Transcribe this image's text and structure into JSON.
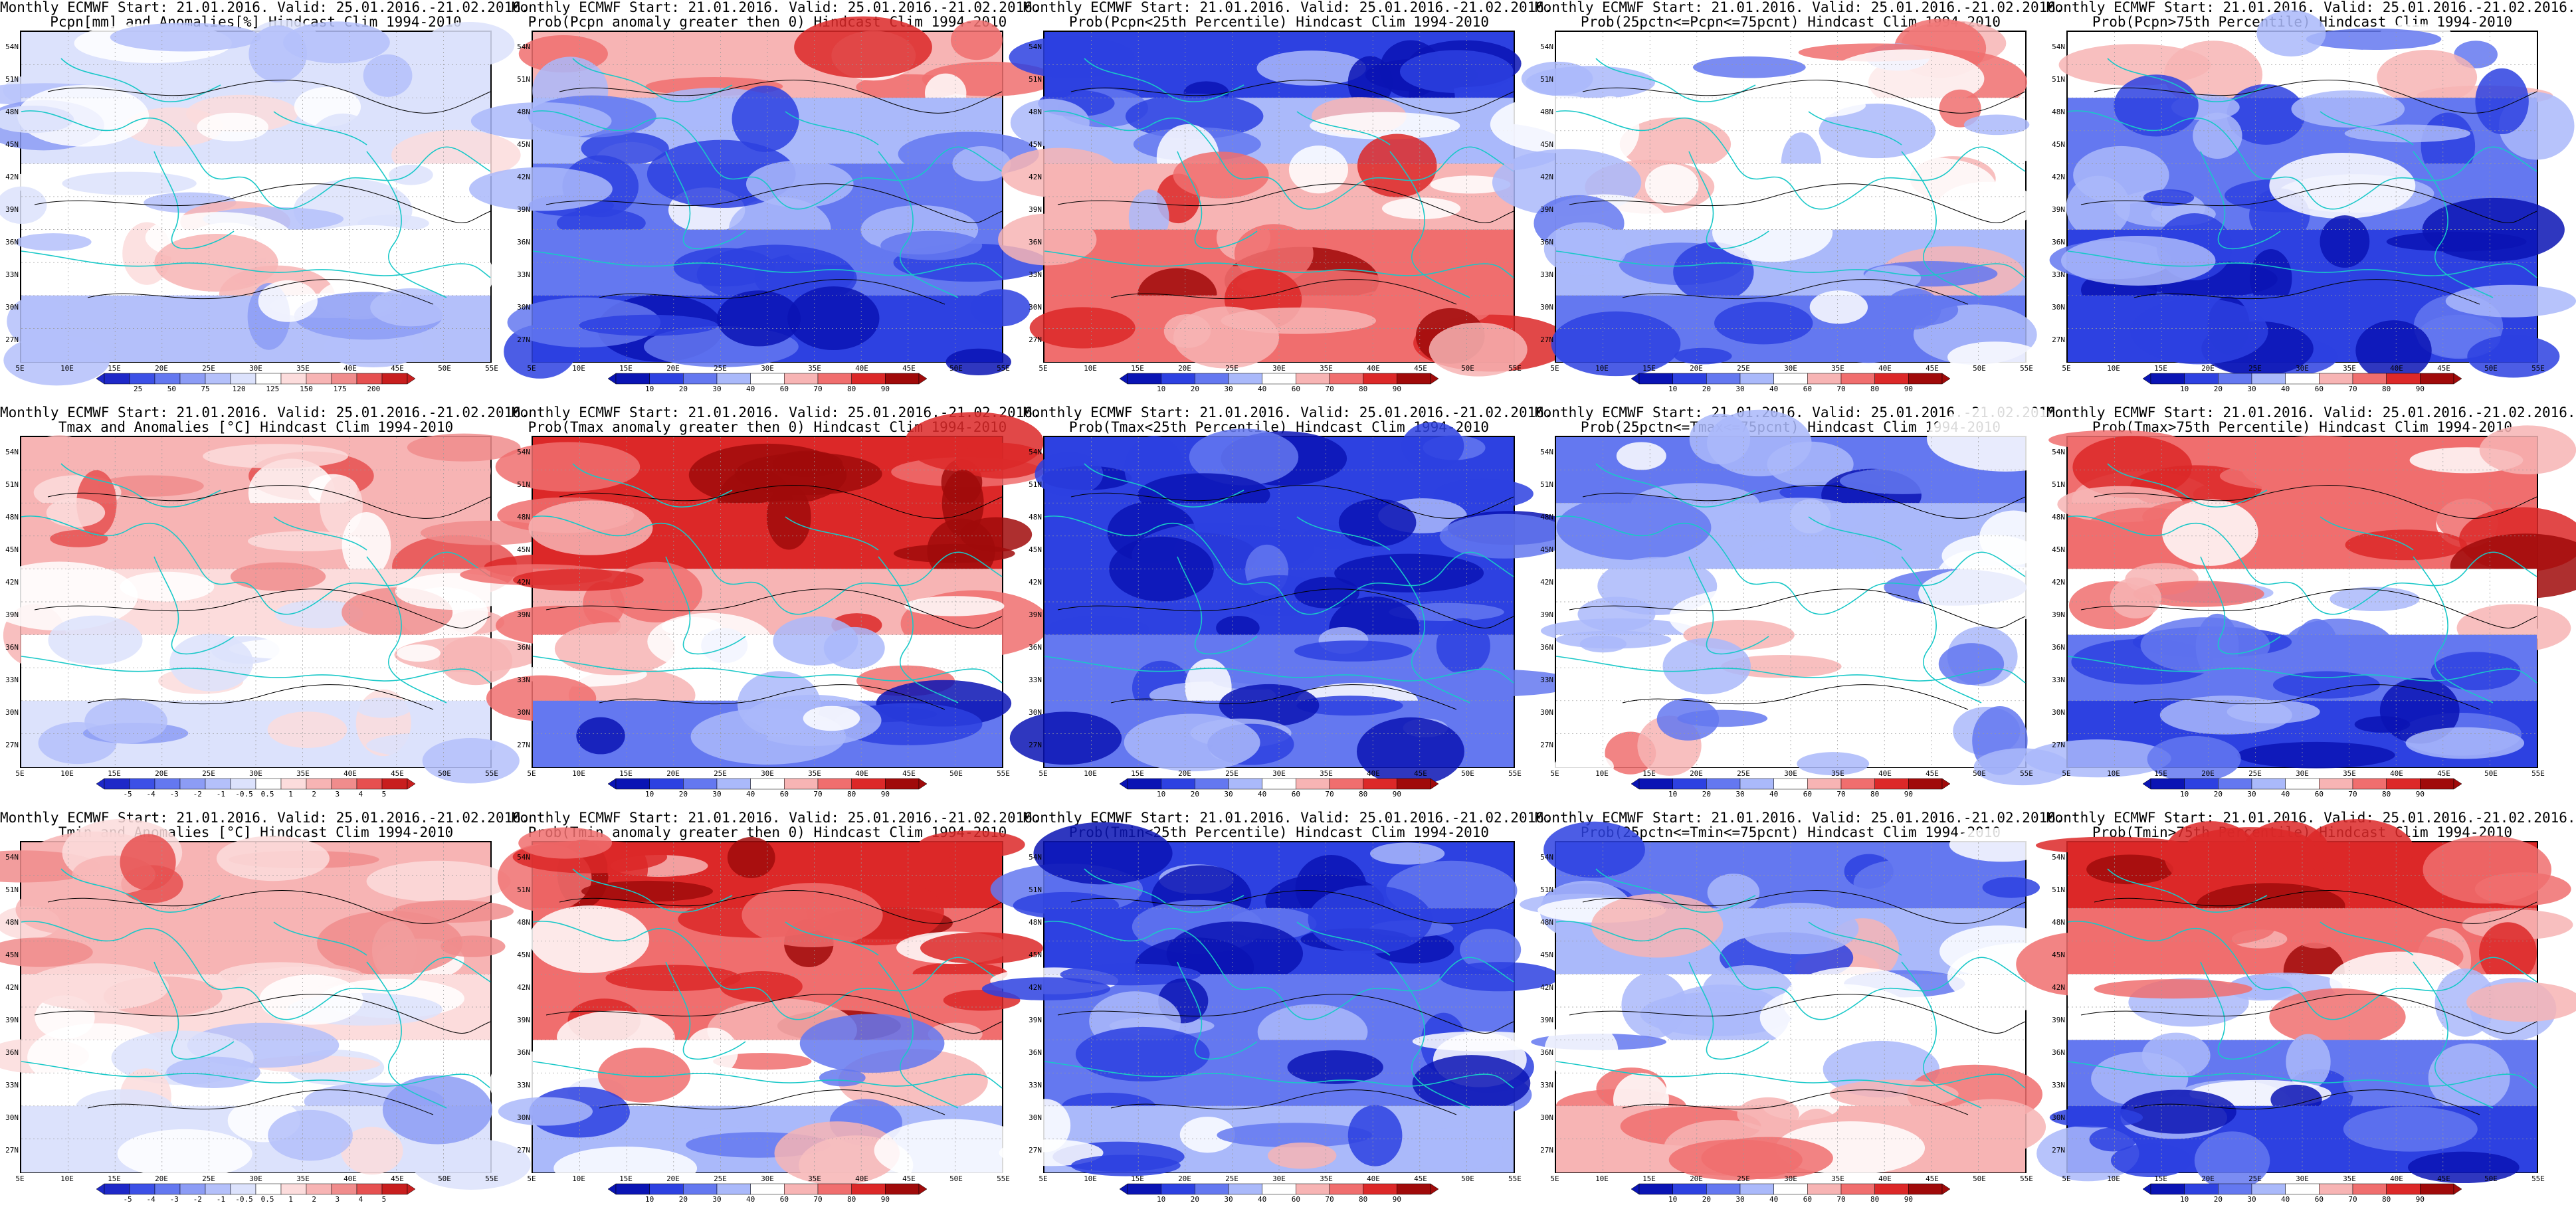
{
  "header_common": "Monthly ECMWF Start: 21.01.2016. Valid: 25.01.2016.-21.02.2016.",
  "panels": [
    {
      "id": "r1c1",
      "title1": "Monthly ECMWF Start: 21.01.2016. Valid: 25.01.2016.-21.02.2016.",
      "title2": "Pcpn[mm] and Anomalies[%] Hindcast Clim 1994-2010",
      "scheme": "anom",
      "fill": [
        0.42,
        0.45,
        0.5,
        0.55,
        0.35
      ],
      "cbar": [
        "25",
        "50",
        "75",
        "120",
        "125",
        "150",
        "175",
        "200"
      ]
    },
    {
      "id": "r1c2",
      "title1": "Monthly ECMWF Start: 21.01.2016. Valid: 25.01.2016.-21.02.2016.",
      "title2": "Prob(Pcpn anomaly greater then 0) Hindcast Clim 1994-2010",
      "scheme": "prob",
      "fill": [
        0.6,
        0.35,
        0.25,
        0.2,
        0.15
      ],
      "cbar": [
        "10",
        "20",
        "30",
        "40",
        "60",
        "70",
        "80",
        "90"
      ]
    },
    {
      "id": "r1c3",
      "title1": "Monthly ECMWF Start: 21.01.2016. Valid: 25.01.2016.-21.02.2016.",
      "title2": "Prob(Pcpn<25th Percentile) Hindcast Clim 1994-2010",
      "scheme": "prob",
      "fill": [
        0.1,
        0.35,
        0.6,
        0.75,
        0.8
      ],
      "cbar": [
        "10",
        "20",
        "30",
        "40",
        "60",
        "70",
        "80",
        "90"
      ]
    },
    {
      "id": "r1c4",
      "title1": "Monthly ECMWF Start: 21.01.2016. Valid: 25.01.2016.-21.02.2016.",
      "title2": "Prob(25pctn<=Pcpn<=75pcnt) Hindcast Clim 1994-2010",
      "scheme": "prob",
      "fill": [
        0.45,
        0.5,
        0.45,
        0.4,
        0.3
      ],
      "cbar": [
        "10",
        "20",
        "30",
        "40",
        "60",
        "70",
        "80",
        "90"
      ]
    },
    {
      "id": "r1c5",
      "title1": "Monthly ECMWF Start: 21.01.2016. Valid: 25.01.2016.-21.02.2016.",
      "title2": "Prob(Pcpn>75th Percentile) Hindcast Clim 1994-2010",
      "scheme": "prob",
      "fill": [
        0.45,
        0.3,
        0.2,
        0.15,
        0.1
      ],
      "cbar": [
        "10",
        "20",
        "30",
        "40",
        "60",
        "70",
        "80",
        "90"
      ]
    },
    {
      "id": "r2c1",
      "title1": "Monthly ECMWF Start: 21.01.2016. Valid: 25.01.2016.-21.02.2016.",
      "title2": "Tmax and Anomalies [°C] Hindcast Clim 1994-2010",
      "scheme": "anom",
      "fill": [
        0.72,
        0.7,
        0.62,
        0.55,
        0.45
      ],
      "cbar": [
        "-5",
        "-4",
        "-3",
        "-2",
        "-1",
        "-0.5",
        "0.5",
        "1",
        "2",
        "3",
        "4",
        "5"
      ]
    },
    {
      "id": "r2c2",
      "title1": "Monthly ECMWF Start: 21.01.2016. Valid: 25.01.2016.-21.02.2016.",
      "title2": "Prob(Tmax anomaly greater then 0) Hindcast Clim 1994-2010",
      "scheme": "prob",
      "fill": [
        0.85,
        0.82,
        0.65,
        0.45,
        0.3
      ],
      "cbar": [
        "10",
        "20",
        "30",
        "40",
        "60",
        "70",
        "80",
        "90"
      ]
    },
    {
      "id": "r2c3",
      "title1": "Monthly ECMWF Start: 21.01.2016. Valid: 25.01.2016.-21.02.2016.",
      "title2": "Prob(Tmax<25th Percentile) Hindcast Clim 1994-2010",
      "scheme": "prob",
      "fill": [
        0.1,
        0.1,
        0.15,
        0.2,
        0.25
      ],
      "cbar": [
        "10",
        "20",
        "30",
        "40",
        "60",
        "70",
        "80",
        "90"
      ]
    },
    {
      "id": "r2c4",
      "title1": "Monthly ECMWF Start: 21.01.2016. Valid: 25.01.2016.-21.02.2016.",
      "title2": "Prob(25pctn<=Tmax<=75pcnt) Hindcast Clim 1994-2010",
      "scheme": "prob",
      "fill": [
        0.3,
        0.35,
        0.45,
        0.5,
        0.55
      ],
      "cbar": [
        "10",
        "20",
        "30",
        "40",
        "60",
        "70",
        "80",
        "90"
      ]
    },
    {
      "id": "r2c5",
      "title1": "Monthly ECMWF Start: 21.01.2016. Valid: 25.01.2016.-21.02.2016.",
      "title2": "Prob(Tmax>75th Percentile) Hindcast Clim 1994-2010",
      "scheme": "prob",
      "fill": [
        0.8,
        0.75,
        0.55,
        0.3,
        0.15
      ],
      "cbar": [
        "10",
        "20",
        "30",
        "40",
        "60",
        "70",
        "80",
        "90"
      ]
    },
    {
      "id": "r3c1",
      "title1": "Monthly ECMWF Start: 21.01.2016. Valid: 25.01.2016.-21.02.2016.",
      "title2": "Tmin and Anomalies [°C] Hindcast Clim 1994-2010",
      "scheme": "anom",
      "fill": [
        0.75,
        0.72,
        0.62,
        0.5,
        0.45
      ],
      "cbar": [
        "-5",
        "-4",
        "-3",
        "-2",
        "-1",
        "-0.5",
        "0.5",
        "1",
        "2",
        "3",
        "4",
        "5"
      ]
    },
    {
      "id": "r3c2",
      "title1": "Monthly ECMWF Start: 21.01.2016. Valid: 25.01.2016.-21.02.2016.",
      "title2": "Prob(Tmin anomaly greater then 0) Hindcast Clim 1994-2010",
      "scheme": "prob",
      "fill": [
        0.85,
        0.8,
        0.7,
        0.5,
        0.35
      ],
      "cbar": [
        "10",
        "20",
        "30",
        "40",
        "60",
        "70",
        "80",
        "90"
      ]
    },
    {
      "id": "r3c3",
      "title1": "Monthly ECMWF Start: 21.01.2016. Valid: 25.01.2016.-21.02.2016.",
      "title2": "Prob(Tmin<25th Percentile) Hindcast Clim 1994-2010",
      "scheme": "prob",
      "fill": [
        0.1,
        0.12,
        0.2,
        0.3,
        0.35
      ],
      "cbar": [
        "10",
        "20",
        "30",
        "40",
        "60",
        "70",
        "80",
        "90"
      ]
    },
    {
      "id": "r3c4",
      "title1": "Monthly ECMWF Start: 21.01.2016. Valid: 25.01.2016.-21.02.2016.",
      "title2": "Prob(25pctn<=Tmin<=75pcnt) Hindcast Clim 1994-2010",
      "scheme": "prob",
      "fill": [
        0.3,
        0.35,
        0.45,
        0.55,
        0.6
      ],
      "cbar": [
        "10",
        "20",
        "30",
        "40",
        "60",
        "70",
        "80",
        "90"
      ]
    },
    {
      "id": "r3c5",
      "title1": "Monthly ECMWF Start: 21.01.2016. Valid: 25.01.2016.-21.02.2016.",
      "title2": "Prob(Tmin>75th Percentile) Hindcast Clim 1994-2010",
      "scheme": "prob",
      "fill": [
        0.85,
        0.7,
        0.5,
        0.25,
        0.15
      ],
      "cbar": [
        "10",
        "20",
        "30",
        "40",
        "60",
        "70",
        "80",
        "90"
      ]
    }
  ],
  "lat_labels": [
    "54N",
    "51N",
    "48N",
    "45N",
    "42N",
    "39N",
    "36N",
    "33N",
    "30N",
    "27N"
  ],
  "lon_labels": [
    "5E",
    "10E",
    "15E",
    "20E",
    "25E",
    "30E",
    "35E",
    "40E",
    "45E",
    "50E",
    "55E"
  ],
  "colors": {
    "anom": [
      "#1e28c8",
      "#3c50e6",
      "#6478f0",
      "#8c9cf5",
      "#b4c0fa",
      "#dce2fc",
      "#ffffff",
      "#fcdcdc",
      "#f7b4b4",
      "#f08c8c",
      "#e65050",
      "#c81e1e"
    ],
    "prob": [
      "#0a14b4",
      "#2d41e1",
      "#6478f0",
      "#aab9fa",
      "#ffffff",
      "#f7b4b4",
      "#f06e6e",
      "#dc2828",
      "#a00a0a"
    ],
    "coast": "#19c8c8",
    "contour": "#000000"
  }
}
